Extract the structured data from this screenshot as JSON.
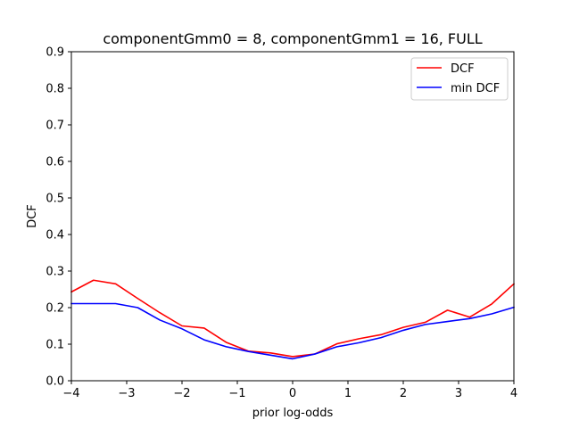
{
  "chart_data": {
    "type": "line",
    "title": "componentGmm0 = 8, componentGmm1 = 16, FULL",
    "xlabel": "prior log-odds",
    "ylabel": "DCF",
    "xlim": [
      -4,
      4
    ],
    "ylim": [
      0,
      0.9
    ],
    "xticks": [
      -4,
      -3,
      -2,
      -1,
      0,
      1,
      2,
      3,
      4
    ],
    "xtick_labels": [
      "−4",
      "−3",
      "−2",
      "−1",
      "0",
      "1",
      "2",
      "3",
      "4"
    ],
    "yticks": [
      0.0,
      0.1,
      0.2,
      0.3,
      0.4,
      0.5,
      0.6,
      0.7,
      0.8,
      0.9
    ],
    "ytick_labels": [
      "0.0",
      "0.1",
      "0.2",
      "0.3",
      "0.4",
      "0.5",
      "0.6",
      "0.7",
      "0.8",
      "0.9"
    ],
    "grid": false,
    "legend_position": "top-right",
    "x": [
      -4.0,
      -3.6,
      -3.2,
      -2.8,
      -2.4,
      -2.0,
      -1.6,
      -1.2,
      -0.8,
      -0.4,
      0.0,
      0.4,
      0.8,
      1.2,
      1.6,
      2.0,
      2.4,
      2.8,
      3.2,
      3.6,
      4.0
    ],
    "series": [
      {
        "name": "DCF",
        "color": "#ff0000",
        "values": [
          0.243,
          0.275,
          0.265,
          0.225,
          0.186,
          0.15,
          0.144,
          0.105,
          0.081,
          0.076,
          0.066,
          0.073,
          0.101,
          0.115,
          0.126,
          0.146,
          0.16,
          0.193,
          0.174,
          0.21,
          0.265
        ]
      },
      {
        "name": "min DCF",
        "color": "#0000ff",
        "values": [
          0.211,
          0.211,
          0.211,
          0.2,
          0.166,
          0.142,
          0.112,
          0.093,
          0.08,
          0.07,
          0.06,
          0.073,
          0.093,
          0.104,
          0.118,
          0.138,
          0.154,
          0.162,
          0.17,
          0.183,
          0.201
        ]
      }
    ]
  }
}
